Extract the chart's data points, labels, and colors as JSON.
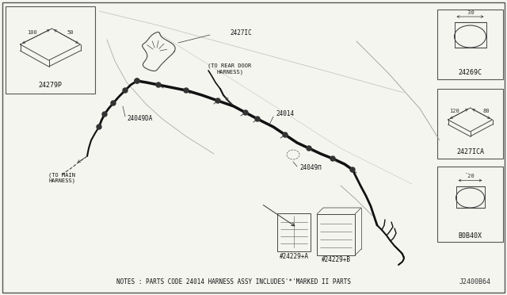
{
  "bg_color": "#f5f5f0",
  "border_color": "#444444",
  "line_color": "#444444",
  "thick_color": "#111111",
  "dim_color": "#333333",
  "label_color": "#111111",
  "note_text": "NOTES : PARTS CODE 24014 HARNESS ASSY INCLUDES'*'MARKED II PARTS",
  "ref_text": "J2400B64",
  "parts": {
    "24279P": "24279P",
    "2427IC": "2427IC",
    "24014": "24014",
    "24049II": "24049Π",
    "24049DA": "24049DA",
    "24229pA": "#24229+A",
    "24229pB": "#24229+B",
    "24269C": "24269C",
    "2427ICA": "2427ICA",
    "B0B40X": "B0B40X"
  },
  "to_rear_door": "(TO REAR DOOR\nHARNESS)",
  "to_main": "(TO MAIN\nHARNESS)"
}
